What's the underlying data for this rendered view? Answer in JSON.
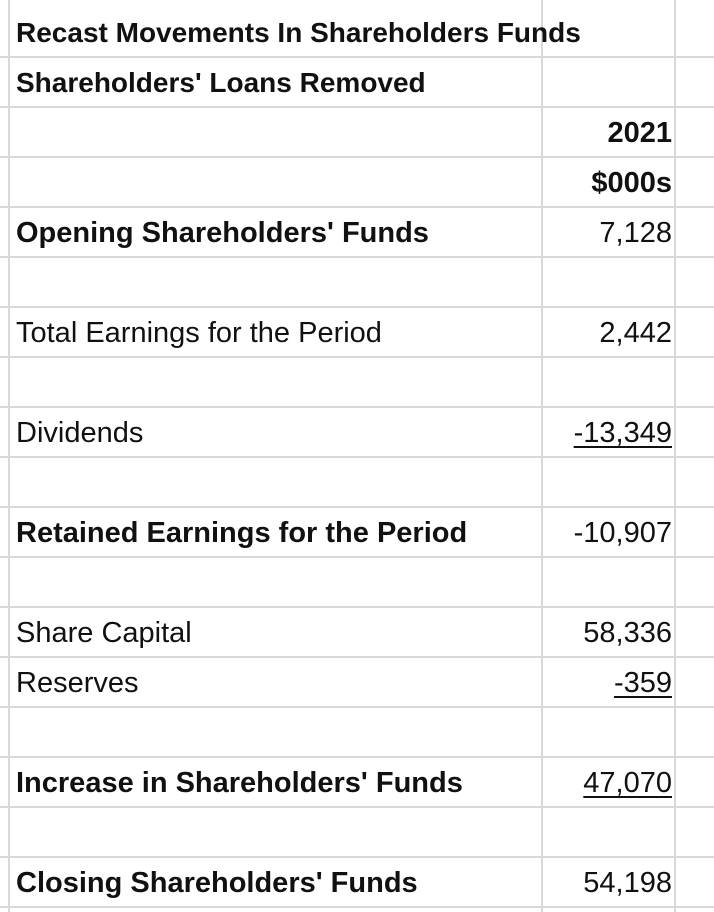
{
  "sheet": {
    "title": "Recast Movements In Shareholders Funds",
    "subtitle": "Shareholders' Loans Removed",
    "year": "2021",
    "unit": "$000s",
    "rows": {
      "opening": {
        "label": "Opening Shareholders' Funds",
        "value": "7,128"
      },
      "total_earnings": {
        "label": "Total Earnings for the Period",
        "value": "2,442"
      },
      "dividends": {
        "label": "Dividends",
        "value": "-13,349"
      },
      "retained": {
        "label": "Retained Earnings for the Period",
        "value": "-10,907"
      },
      "share_capital": {
        "label": "Share Capital",
        "value": "58,336"
      },
      "reserves": {
        "label": "Reserves",
        "value": "-359"
      },
      "increase": {
        "label": "Increase in Shareholders' Funds",
        "value": "47,070"
      },
      "closing": {
        "label": "Closing Shareholders' Funds",
        "value": "54,198"
      }
    }
  }
}
